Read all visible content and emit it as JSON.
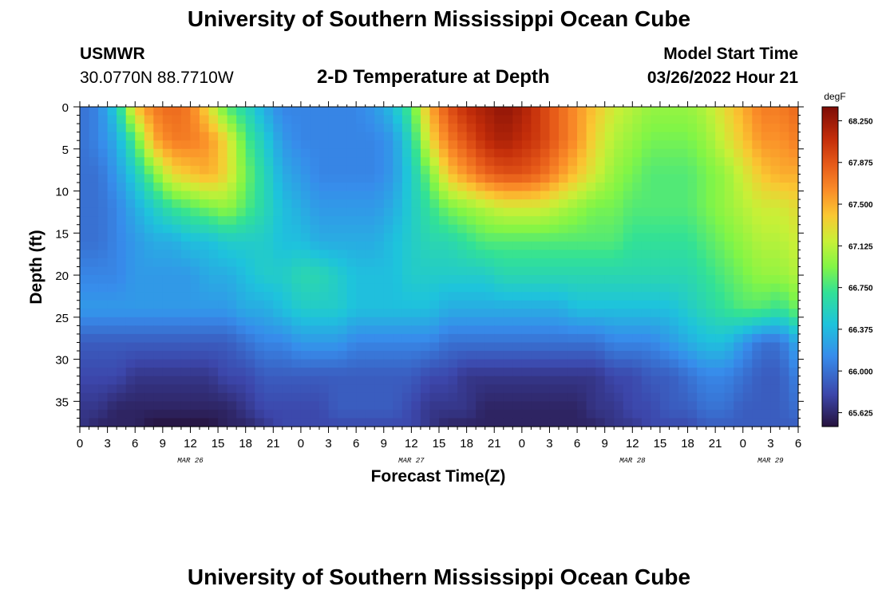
{
  "page": {
    "title": "University of Southern Mississippi Ocean Cube",
    "station": "USMWR",
    "coordinates": "30.0770N  88.7710W",
    "subtitle": "2-D Temperature at Depth",
    "model_start_label": "Model Start Time",
    "model_start_value": "03/26/2022 Hour 21",
    "footer_title": "University of Southern Mississippi Ocean Cube"
  },
  "chart_data": {
    "type": "heatmap",
    "xlabel": "Forecast Time(Z)",
    "ylabel": "Depth (ft)",
    "x_range_hours": [
      0,
      78
    ],
    "y_range": [
      0,
      38
    ],
    "x_tick_labels": [
      "0",
      "3",
      "6",
      "9",
      "12",
      "15",
      "18",
      "21",
      "0",
      "3",
      "6",
      "9",
      "12",
      "15",
      "18",
      "21",
      "0",
      "3",
      "6",
      "9",
      "12",
      "15",
      "18",
      "21",
      "0",
      "3",
      "6"
    ],
    "y_ticks": [
      0,
      5,
      10,
      15,
      20,
      25,
      30,
      35
    ],
    "date_labels": [
      {
        "label": "MAR 26",
        "hour": 12
      },
      {
        "label": "MAR 27",
        "hour": 36
      },
      {
        "label": "MAR 28",
        "hour": 60
      },
      {
        "label": "MAR 29",
        "hour": 75
      }
    ],
    "colorbar": {
      "unit": "degF",
      "min": 65.5,
      "max": 68.375,
      "tick_labels": [
        "68.250",
        "67.875",
        "67.500",
        "67.125",
        "66.750",
        "66.375",
        "66.000",
        "65.625"
      ]
    },
    "grid": false,
    "depth_levels": [
      0,
      4,
      8,
      12,
      16,
      20,
      24,
      28,
      32,
      36,
      38
    ],
    "time_hours": [
      0,
      2,
      4,
      6,
      8,
      10,
      12,
      14,
      16,
      18,
      20,
      22,
      24,
      26,
      28,
      30,
      32,
      34,
      36,
      38,
      40,
      42,
      44,
      46,
      48,
      50,
      52,
      54,
      56,
      58,
      60,
      62,
      64,
      66,
      68,
      70,
      72,
      74,
      76,
      78
    ],
    "temperature_degF": [
      [
        66.0,
        66.1,
        66.5,
        67.4,
        67.7,
        67.8,
        67.7,
        67.3,
        66.8,
        66.6,
        66.3,
        66.1,
        66.1,
        66.1,
        66.1,
        66.1,
        66.2,
        66.4,
        66.8,
        67.5,
        67.9,
        68.1,
        68.2,
        68.3,
        68.2,
        68.0,
        67.8,
        67.6,
        67.4,
        67.2,
        67.1,
        67.0,
        67.0,
        67.0,
        67.1,
        67.3,
        67.5,
        67.7,
        67.7,
        67.8
      ],
      [
        66.0,
        66.1,
        66.3,
        66.8,
        67.5,
        67.7,
        67.7,
        67.6,
        67.3,
        66.8,
        66.5,
        66.2,
        66.1,
        66.1,
        66.1,
        66.1,
        66.1,
        66.2,
        66.6,
        67.3,
        67.7,
        67.9,
        68.1,
        68.2,
        68.1,
        68.0,
        67.8,
        67.6,
        67.3,
        67.1,
        67.0,
        66.9,
        66.9,
        66.9,
        67.0,
        67.2,
        67.4,
        67.6,
        67.6,
        67.7
      ],
      [
        66.0,
        66.0,
        66.2,
        66.5,
        66.9,
        67.3,
        67.4,
        67.5,
        67.3,
        66.9,
        66.6,
        66.3,
        66.2,
        66.1,
        66.1,
        66.1,
        66.1,
        66.2,
        66.5,
        66.9,
        67.4,
        67.6,
        67.8,
        67.9,
        67.9,
        67.8,
        67.6,
        67.4,
        67.2,
        67.0,
        66.9,
        66.8,
        66.8,
        66.8,
        66.9,
        67.0,
        67.2,
        67.4,
        67.5,
        67.5
      ],
      [
        66.0,
        66.0,
        66.1,
        66.3,
        66.5,
        66.7,
        66.8,
        66.9,
        67.0,
        66.8,
        66.6,
        66.4,
        66.3,
        66.2,
        66.2,
        66.2,
        66.2,
        66.3,
        66.5,
        66.7,
        66.9,
        67.0,
        67.1,
        67.2,
        67.2,
        67.2,
        67.1,
        67.0,
        66.9,
        66.9,
        66.8,
        66.8,
        66.8,
        66.8,
        66.9,
        67.0,
        67.1,
        67.2,
        67.2,
        67.3
      ],
      [
        66.0,
        66.0,
        66.1,
        66.2,
        66.3,
        66.3,
        66.4,
        66.4,
        66.5,
        66.5,
        66.5,
        66.4,
        66.4,
        66.3,
        66.3,
        66.3,
        66.3,
        66.4,
        66.5,
        66.6,
        66.6,
        66.7,
        66.8,
        66.8,
        66.8,
        66.8,
        66.8,
        66.8,
        66.8,
        66.8,
        66.7,
        66.7,
        66.7,
        66.7,
        66.8,
        66.9,
        67.0,
        67.1,
        67.1,
        67.2
      ],
      [
        66.1,
        66.1,
        66.1,
        66.2,
        66.2,
        66.2,
        66.2,
        66.3,
        66.3,
        66.4,
        66.5,
        66.5,
        66.6,
        66.6,
        66.5,
        66.4,
        66.4,
        66.4,
        66.5,
        66.5,
        66.5,
        66.5,
        66.5,
        66.6,
        66.6,
        66.6,
        66.6,
        66.6,
        66.6,
        66.6,
        66.6,
        66.6,
        66.6,
        66.6,
        66.7,
        66.8,
        66.9,
        67.0,
        67.0,
        67.1
      ],
      [
        66.2,
        66.2,
        66.2,
        66.2,
        66.2,
        66.2,
        66.2,
        66.2,
        66.2,
        66.3,
        66.3,
        66.4,
        66.5,
        66.5,
        66.5,
        66.4,
        66.4,
        66.4,
        66.4,
        66.4,
        66.3,
        66.3,
        66.3,
        66.3,
        66.3,
        66.3,
        66.3,
        66.4,
        66.4,
        66.4,
        66.4,
        66.4,
        66.4,
        66.5,
        66.6,
        66.7,
        66.8,
        66.8,
        66.7,
        66.9
      ],
      [
        65.9,
        65.9,
        65.9,
        65.9,
        65.9,
        65.9,
        65.9,
        65.9,
        65.9,
        66.0,
        66.1,
        66.1,
        66.2,
        66.2,
        66.2,
        66.1,
        66.1,
        66.1,
        66.1,
        66.1,
        66.0,
        66.0,
        66.0,
        66.0,
        66.0,
        66.0,
        66.0,
        66.0,
        66.0,
        66.1,
        66.1,
        66.1,
        66.2,
        66.3,
        66.4,
        66.4,
        66.2,
        66.0,
        66.0,
        66.3
      ],
      [
        65.8,
        65.8,
        65.8,
        65.7,
        65.7,
        65.7,
        65.7,
        65.7,
        65.8,
        65.8,
        65.9,
        65.9,
        65.9,
        65.9,
        65.9,
        65.9,
        65.9,
        65.9,
        65.9,
        65.8,
        65.8,
        65.7,
        65.7,
        65.7,
        65.7,
        65.7,
        65.7,
        65.7,
        65.7,
        65.8,
        65.8,
        65.9,
        65.9,
        66.0,
        66.1,
        66.1,
        66.0,
        65.9,
        65.9,
        66.1
      ],
      [
        65.7,
        65.7,
        65.6,
        65.6,
        65.6,
        65.6,
        65.6,
        65.6,
        65.6,
        65.7,
        65.8,
        65.8,
        65.8,
        65.8,
        65.9,
        65.9,
        65.9,
        65.9,
        65.8,
        65.7,
        65.7,
        65.7,
        65.6,
        65.6,
        65.6,
        65.6,
        65.6,
        65.6,
        65.7,
        65.7,
        65.8,
        65.8,
        65.9,
        65.9,
        66.0,
        66.0,
        65.9,
        65.9,
        65.9,
        66.0
      ],
      [
        65.7,
        65.6,
        65.6,
        65.6,
        65.5,
        65.5,
        65.5,
        65.5,
        65.6,
        65.6,
        65.7,
        65.8,
        65.8,
        65.8,
        65.8,
        65.8,
        65.8,
        65.8,
        65.8,
        65.7,
        65.6,
        65.6,
        65.6,
        65.6,
        65.6,
        65.6,
        65.6,
        65.6,
        65.6,
        65.7,
        65.7,
        65.8,
        65.8,
        65.8,
        65.9,
        65.9,
        65.9,
        65.9,
        65.9,
        65.9
      ]
    ]
  }
}
